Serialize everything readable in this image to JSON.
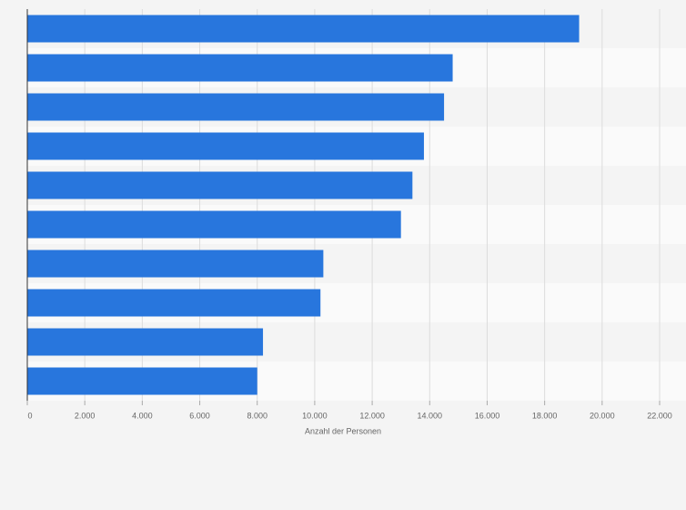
{
  "chart_data": {
    "type": "barh",
    "x_label": "Anzahl der Personen",
    "categories": [
      null,
      null,
      null,
      null,
      null,
      null,
      null,
      null,
      null,
      null
    ],
    "values": [
      19200,
      14800,
      14500,
      13800,
      13400,
      13000,
      10300,
      10200,
      8200,
      8000
    ],
    "color": "#2876dd",
    "xlim": [
      0,
      22000
    ],
    "xticks": [
      0,
      {
        "value": 2000,
        "label": "2.000"
      },
      {
        "value": 4000,
        "label": "4.000"
      },
      {
        "value": 6000,
        "label": "6.000"
      },
      {
        "value": 8000,
        "label": "8.000"
      },
      {
        "value": 10000,
        "label": "10.000"
      },
      {
        "value": 12000,
        "label": "12.000"
      },
      {
        "value": 14000,
        "label": "14.000"
      },
      {
        "value": 16000,
        "label": "16.000"
      },
      {
        "value": 18000,
        "label": "18.000"
      },
      {
        "value": 20000,
        "label": "20.000"
      },
      {
        "value": 22000,
        "label": "22.000"
      }
    ],
    "grid": true
  }
}
